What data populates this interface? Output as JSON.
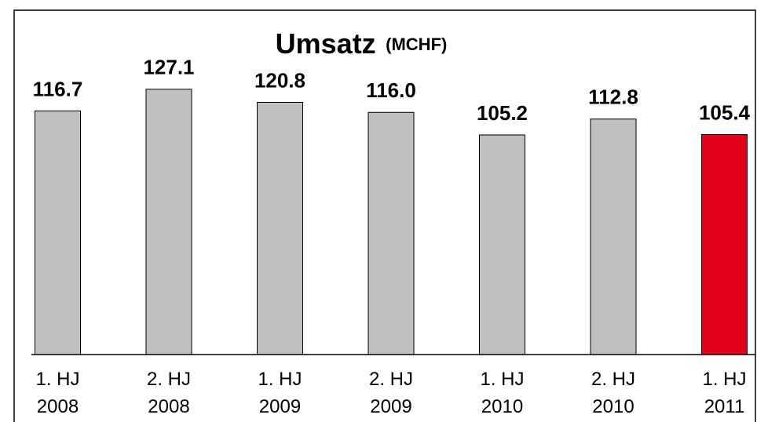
{
  "chart_data": {
    "type": "bar",
    "title": "Umsatz",
    "unit": "(MCHF)",
    "categories": [
      "1. HJ\n2008",
      "2. HJ\n2008",
      "1. HJ\n2009",
      "2. HJ\n2009",
      "1. HJ\n2010",
      "2. HJ\n2010",
      "1. HJ\n2011"
    ],
    "values": [
      116.7,
      127.1,
      120.8,
      116.0,
      105.2,
      112.8,
      105.4
    ],
    "value_labels": [
      "116.7",
      "127.1",
      "120.8",
      "116.0",
      "105.2",
      "112.8",
      "105.4"
    ],
    "colors": [
      "#c0c0c0",
      "#c0c0c0",
      "#c0c0c0",
      "#c0c0c0",
      "#c0c0c0",
      "#c0c0c0",
      "#e2001a"
    ],
    "ylim": [
      0,
      130
    ]
  }
}
